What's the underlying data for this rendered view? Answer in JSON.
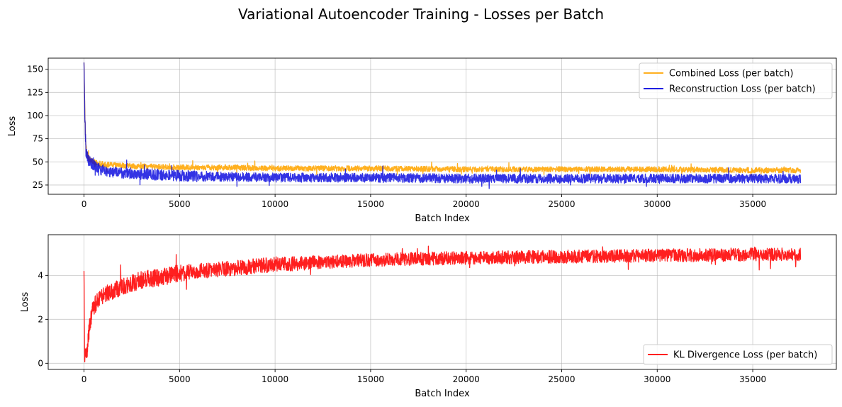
{
  "figure": {
    "title": "Variational Autoencoder Training - Losses per Batch"
  },
  "chart_data": [
    {
      "type": "line",
      "xlabel": "Batch Index",
      "ylabel": "Loss",
      "xlim": [
        -1875,
        39375
      ],
      "ylim": [
        15,
        162
      ],
      "xticks": [
        0,
        5000,
        10000,
        15000,
        20000,
        25000,
        30000,
        35000
      ],
      "yticks": [
        25,
        50,
        75,
        100,
        125,
        150
      ],
      "grid": true,
      "legend_position": "upper right",
      "series": [
        {
          "name": "Combined Loss (per batch)",
          "color": "#ffa500",
          "x": [
            0,
            50,
            100,
            200,
            300,
            500,
            800,
            1200,
            2000,
            3000,
            5000,
            7500,
            10000,
            15000,
            20000,
            25000,
            30000,
            35000,
            37500
          ],
          "values": [
            156,
            96,
            65,
            56,
            52,
            50,
            48,
            47,
            46,
            45,
            44,
            44,
            43,
            43,
            42,
            42,
            42,
            41,
            41
          ],
          "band": [
            3,
            4,
            4,
            4,
            3,
            3,
            3,
            3,
            3,
            3,
            3,
            3,
            3,
            3,
            3,
            3,
            3,
            3,
            3
          ]
        },
        {
          "name": "Reconstruction Loss (per batch)",
          "color": "#0000dd",
          "x": [
            0,
            50,
            100,
            200,
            300,
            500,
            800,
            1200,
            2000,
            3000,
            5000,
            7500,
            10000,
            15000,
            20000,
            25000,
            30000,
            35000,
            37500
          ],
          "values": [
            156,
            92,
            62,
            54,
            50,
            46,
            42,
            40,
            38,
            37,
            35,
            34,
            33,
            33,
            32,
            32,
            32,
            32,
            32
          ],
          "band": [
            3,
            6,
            6,
            6,
            6,
            6,
            6,
            6,
            6,
            6,
            6,
            5,
            5,
            5,
            5,
            5,
            5,
            5,
            5
          ]
        }
      ]
    },
    {
      "type": "line",
      "xlabel": "Batch Index",
      "ylabel": "Loss",
      "xlim": [
        -1875,
        39375
      ],
      "ylim": [
        -0.28,
        5.85
      ],
      "xticks": [
        0,
        5000,
        10000,
        15000,
        20000,
        25000,
        30000,
        35000
      ],
      "yticks": [
        0,
        2,
        4
      ],
      "grid": true,
      "legend_position": "lower right",
      "series": [
        {
          "name": "KL Divergence Loss (per batch)",
          "color": "#ff0000",
          "x": [
            0,
            30,
            80,
            150,
            250,
            400,
            700,
            1000,
            1500,
            2000,
            3000,
            4000,
            5000,
            6000,
            7500,
            10000,
            12500,
            15000,
            17500,
            20000,
            25000,
            30000,
            35000,
            37500
          ],
          "values": [
            4.2,
            0.1,
            0.6,
            0.4,
            1.4,
            2.3,
            2.9,
            3.1,
            3.3,
            3.5,
            3.8,
            3.9,
            4.1,
            4.2,
            4.3,
            4.5,
            4.6,
            4.7,
            4.75,
            4.8,
            4.85,
            4.9,
            4.95,
            4.95
          ],
          "band": [
            0,
            0.1,
            0.3,
            0.3,
            0.4,
            0.4,
            0.4,
            0.4,
            0.4,
            0.4,
            0.4,
            0.4,
            0.4,
            0.35,
            0.35,
            0.35,
            0.3,
            0.3,
            0.3,
            0.3,
            0.3,
            0.3,
            0.3,
            0.3
          ]
        }
      ]
    }
  ]
}
